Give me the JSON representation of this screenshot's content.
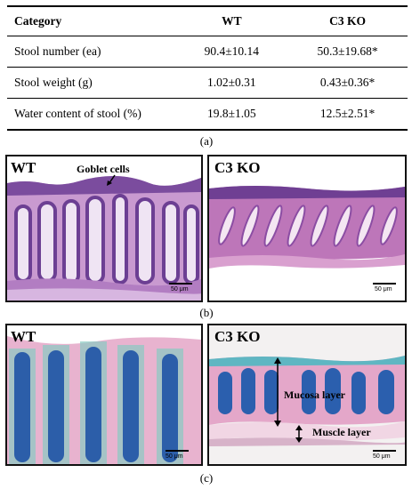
{
  "table": {
    "headers": [
      "Category",
      "WT",
      "C3 KO"
    ],
    "rows": [
      {
        "category": "Stool number (ea)",
        "wt": "90.4±10.14",
        "ko": "50.3±19.68*"
      },
      {
        "category": "Stool weight (g)",
        "wt": "1.02±0.31",
        "ko": "0.43±0.36*"
      },
      {
        "category": "Water content of stool (%)",
        "wt": "19.8±1.05",
        "ko": "12.5±2.51*"
      }
    ]
  },
  "labels": {
    "a": "(a)",
    "b": "(b)",
    "c": "(c)"
  },
  "panel_b": {
    "left_title": "WT",
    "right_title": "C3 KO",
    "annotation": "Goblet cells",
    "scale_left": "50 μm",
    "scale_right": "50 μm"
  },
  "panel_c": {
    "left_title": "WT",
    "right_title": "C3 KO",
    "mucosa": "Mucosa layer",
    "muscle": "Muscle layer",
    "scale_left": "50 μm",
    "scale_right": "50 μm"
  },
  "colors": {
    "he_purple": "#7e4fa0",
    "he_pink": "#d9a3cf",
    "ab_blue": "#2a5fae",
    "ab_pink": "#e3a6c4"
  }
}
